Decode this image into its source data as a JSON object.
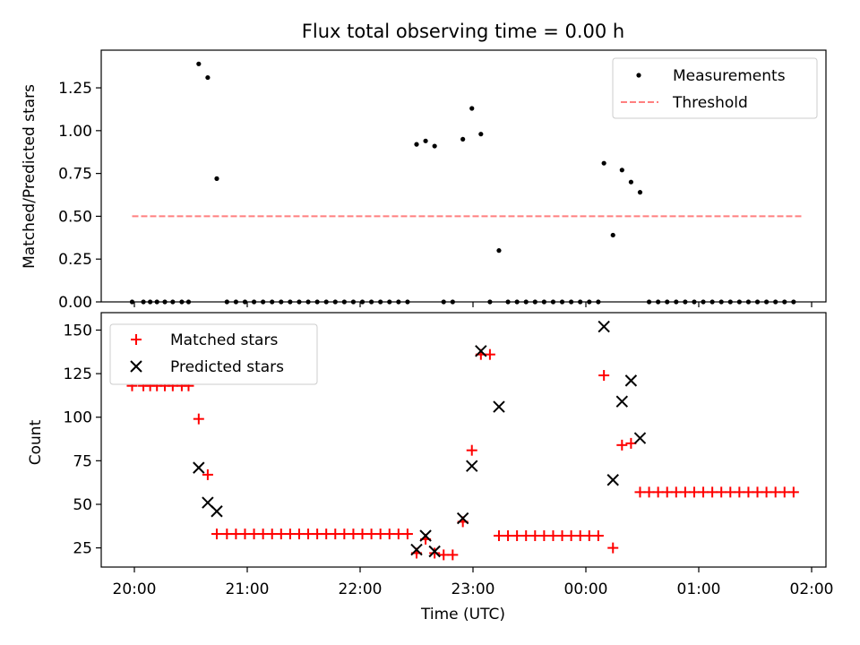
{
  "chart_data": {
    "type": "scatter",
    "title": "Flux total observing time = 0.00 h",
    "xlabel": "Time (UTC)",
    "x_unit": "hours since 20:00 UTC",
    "xticks": [
      {
        "x": 0,
        "label": "20:00"
      },
      {
        "x": 1,
        "label": "21:00"
      },
      {
        "x": 2,
        "label": "22:00"
      },
      {
        "x": 3,
        "label": "23:00"
      },
      {
        "x": 4,
        "label": "00:00"
      },
      {
        "x": 5,
        "label": "01:00"
      },
      {
        "x": 6,
        "label": "02:00"
      }
    ],
    "top": {
      "ylabel": "Matched/Predicted stars",
      "ylim": [
        0,
        1.47
      ],
      "yticks": [
        0.0,
        0.25,
        0.5,
        0.75,
        1.0,
        1.25
      ],
      "yticklabels": [
        "0.00",
        "0.25",
        "0.50",
        "0.75",
        "1.00",
        "1.25"
      ],
      "legend": [
        "Measurements",
        "Threshold"
      ],
      "legend_position": "upper right",
      "threshold": {
        "name": "Threshold",
        "y": 0.5,
        "x_range": [
          -0.02,
          5.92
        ],
        "color": "#ff7f7f"
      },
      "measurements": {
        "name": "Measurements",
        "color": "#000000",
        "points": [
          [
            -0.02,
            0
          ],
          [
            0.08,
            0
          ],
          [
            0.14,
            0
          ],
          [
            0.2,
            0
          ],
          [
            0.27,
            0
          ],
          [
            0.34,
            0
          ],
          [
            0.42,
            0
          ],
          [
            0.48,
            0
          ],
          [
            0.57,
            1.39
          ],
          [
            0.65,
            1.31
          ],
          [
            0.73,
            0.72
          ],
          [
            0.82,
            0
          ],
          [
            0.9,
            0
          ],
          [
            0.98,
            0
          ],
          [
            1.06,
            0
          ],
          [
            1.14,
            0
          ],
          [
            1.22,
            0
          ],
          [
            1.3,
            0
          ],
          [
            1.38,
            0
          ],
          [
            1.46,
            0
          ],
          [
            1.54,
            0
          ],
          [
            1.62,
            0
          ],
          [
            1.7,
            0
          ],
          [
            1.78,
            0
          ],
          [
            1.86,
            0
          ],
          [
            1.94,
            0
          ],
          [
            2.02,
            0
          ],
          [
            2.1,
            0
          ],
          [
            2.18,
            0
          ],
          [
            2.26,
            0
          ],
          [
            2.34,
            0
          ],
          [
            2.42,
            0
          ],
          [
            2.5,
            0.92
          ],
          [
            2.58,
            0.94
          ],
          [
            2.66,
            0.91
          ],
          [
            2.74,
            0
          ],
          [
            2.82,
            0
          ],
          [
            2.91,
            0.95
          ],
          [
            2.99,
            1.13
          ],
          [
            3.07,
            0.98
          ],
          [
            3.15,
            0
          ],
          [
            3.23,
            0.3
          ],
          [
            3.31,
            0
          ],
          [
            3.39,
            0
          ],
          [
            3.47,
            0
          ],
          [
            3.55,
            0
          ],
          [
            3.63,
            0
          ],
          [
            3.71,
            0
          ],
          [
            3.79,
            0
          ],
          [
            3.87,
            0
          ],
          [
            3.95,
            0
          ],
          [
            4.03,
            0
          ],
          [
            4.11,
            0
          ],
          [
            4.16,
            0.81
          ],
          [
            4.24,
            0.39
          ],
          [
            4.32,
            0.77
          ],
          [
            4.4,
            0.7
          ],
          [
            4.48,
            0.64
          ],
          [
            4.56,
            0
          ],
          [
            4.64,
            0
          ],
          [
            4.72,
            0
          ],
          [
            4.8,
            0
          ],
          [
            4.88,
            0
          ],
          [
            4.96,
            0
          ],
          [
            5.04,
            0
          ],
          [
            5.12,
            0
          ],
          [
            5.2,
            0
          ],
          [
            5.28,
            0
          ],
          [
            5.36,
            0
          ],
          [
            5.44,
            0
          ],
          [
            5.52,
            0
          ],
          [
            5.6,
            0
          ],
          [
            5.68,
            0
          ],
          [
            5.76,
            0
          ],
          [
            5.84,
            0
          ]
        ]
      }
    },
    "bottom": {
      "ylabel": "Count",
      "ylim": [
        14,
        160
      ],
      "yticks": [
        25,
        50,
        75,
        100,
        125,
        150
      ],
      "yticklabels": [
        "25",
        "50",
        "75",
        "100",
        "125",
        "150"
      ],
      "legend": [
        "Matched stars",
        "Predicted stars"
      ],
      "legend_position": "upper left",
      "series": [
        {
          "name": "Matched stars",
          "marker": "+",
          "color": "#ff0000",
          "points": [
            [
              -0.02,
              118
            ],
            [
              0.08,
              118
            ],
            [
              0.14,
              118
            ],
            [
              0.2,
              118
            ],
            [
              0.27,
              118
            ],
            [
              0.34,
              118
            ],
            [
              0.42,
              118
            ],
            [
              0.48,
              118
            ],
            [
              0.57,
              99
            ],
            [
              0.65,
              67
            ],
            [
              0.73,
              33
            ],
            [
              0.82,
              33
            ],
            [
              0.9,
              33
            ],
            [
              0.98,
              33
            ],
            [
              1.06,
              33
            ],
            [
              1.14,
              33
            ],
            [
              1.22,
              33
            ],
            [
              1.3,
              33
            ],
            [
              1.38,
              33
            ],
            [
              1.46,
              33
            ],
            [
              1.54,
              33
            ],
            [
              1.62,
              33
            ],
            [
              1.7,
              33
            ],
            [
              1.78,
              33
            ],
            [
              1.86,
              33
            ],
            [
              1.94,
              33
            ],
            [
              2.02,
              33
            ],
            [
              2.1,
              33
            ],
            [
              2.18,
              33
            ],
            [
              2.26,
              33
            ],
            [
              2.34,
              33
            ],
            [
              2.42,
              33
            ],
            [
              2.5,
              22
            ],
            [
              2.58,
              30
            ],
            [
              2.66,
              22
            ],
            [
              2.74,
              21
            ],
            [
              2.82,
              21
            ],
            [
              2.91,
              40
            ],
            [
              2.99,
              81
            ],
            [
              3.07,
              136
            ],
            [
              3.15,
              136
            ],
            [
              3.23,
              32
            ],
            [
              3.31,
              32
            ],
            [
              3.39,
              32
            ],
            [
              3.47,
              32
            ],
            [
              3.55,
              32
            ],
            [
              3.63,
              32
            ],
            [
              3.71,
              32
            ],
            [
              3.79,
              32
            ],
            [
              3.87,
              32
            ],
            [
              3.95,
              32
            ],
            [
              4.03,
              32
            ],
            [
              4.11,
              32
            ],
            [
              4.16,
              124
            ],
            [
              4.24,
              25
            ],
            [
              4.32,
              84
            ],
            [
              4.4,
              85
            ],
            [
              4.48,
              57
            ],
            [
              4.56,
              57
            ],
            [
              4.64,
              57
            ],
            [
              4.72,
              57
            ],
            [
              4.8,
              57
            ],
            [
              4.88,
              57
            ],
            [
              4.96,
              57
            ],
            [
              5.04,
              57
            ],
            [
              5.12,
              57
            ],
            [
              5.2,
              57
            ],
            [
              5.28,
              57
            ],
            [
              5.36,
              57
            ],
            [
              5.44,
              57
            ],
            [
              5.52,
              57
            ],
            [
              5.6,
              57
            ],
            [
              5.68,
              57
            ],
            [
              5.76,
              57
            ],
            [
              5.84,
              57
            ]
          ]
        },
        {
          "name": "Predicted stars",
          "marker": "x",
          "color": "#000000",
          "points": [
            [
              0.57,
              71
            ],
            [
              0.65,
              51
            ],
            [
              0.73,
              46
            ],
            [
              2.5,
              24
            ],
            [
              2.58,
              32
            ],
            [
              2.66,
              23
            ],
            [
              2.91,
              42
            ],
            [
              2.99,
              72
            ],
            [
              3.07,
              138
            ],
            [
              3.23,
              106
            ],
            [
              4.16,
              152
            ],
            [
              4.24,
              64
            ],
            [
              4.32,
              109
            ],
            [
              4.4,
              121
            ],
            [
              4.48,
              88
            ]
          ]
        }
      ]
    }
  }
}
